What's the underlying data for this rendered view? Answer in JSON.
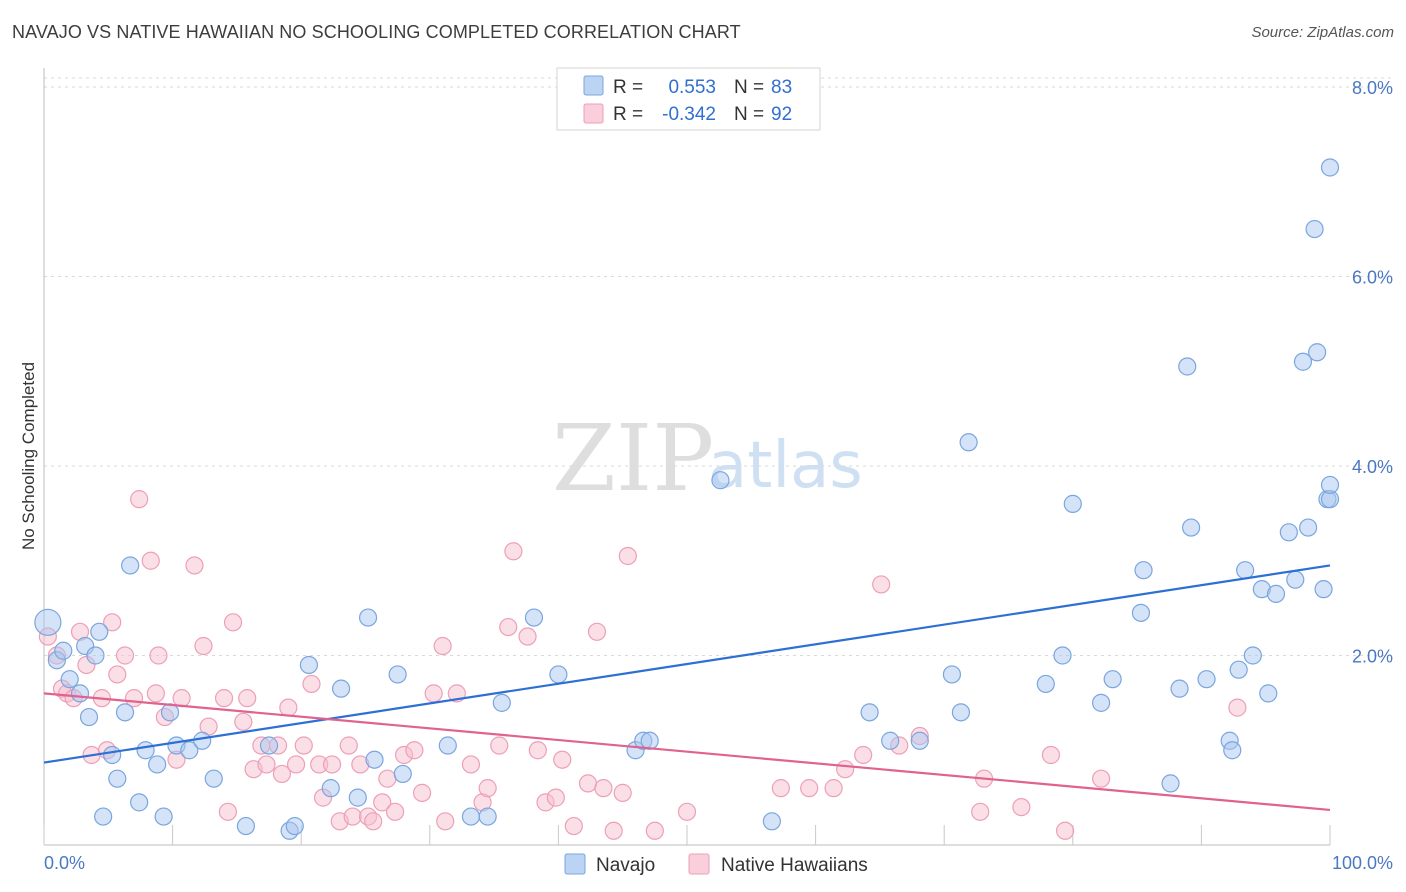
{
  "title": "NAVAJO VS NATIVE HAWAIIAN NO SCHOOLING COMPLETED CORRELATION CHART",
  "source": "Source: ZipAtlas.com",
  "watermark": {
    "zip": "ZIP",
    "atlas": "atlas"
  },
  "colors": {
    "navajo_fill": "#a9c8ef",
    "navajo_stroke": "#7aa6de",
    "navajo_line": "#2d6fd4",
    "hawaiian_fill": "#f6bfd0",
    "hawaiian_stroke": "#ee9fb8",
    "hawaiian_line": "#e0628f",
    "grid": "#d9d9d9",
    "tick_text": "#4a78c2"
  },
  "legend": {
    "rows": [
      {
        "r_label": "R =",
        "r_value": "0.553",
        "n_label": "N =",
        "n_value": "83"
      },
      {
        "r_label": "R =",
        "r_value": "-0.342",
        "n_label": "N =",
        "n_value": "92"
      }
    ]
  },
  "chart_data": {
    "type": "scatter",
    "title": "NAVAJO VS NATIVE HAWAIIAN NO SCHOOLING COMPLETED CORRELATION CHART",
    "xlabel": "",
    "ylabel": "No Schooling Completed",
    "xlim": [
      0,
      100
    ],
    "ylim": [
      0,
      8.2
    ],
    "x_tick_labels": [
      "0.0%",
      "100.0%"
    ],
    "y_ticks": [
      2,
      4,
      6,
      8
    ],
    "y_tick_labels": [
      "2.0%",
      "4.0%",
      "6.0%",
      "8.0%"
    ],
    "grid": true,
    "legend_position": "top-center",
    "series": [
      {
        "name": "Navajo",
        "r": 0.553,
        "n": 83,
        "trend": {
          "x0": 0,
          "y0": 0.87,
          "x1": 100,
          "y1": 2.95
        },
        "points": [
          [
            0.3,
            2.35
          ],
          [
            1.0,
            1.95
          ],
          [
            1.5,
            2.05
          ],
          [
            2.0,
            1.75
          ],
          [
            2.8,
            1.6
          ],
          [
            3.2,
            2.1
          ],
          [
            3.5,
            1.35
          ],
          [
            4.0,
            2.0
          ],
          [
            4.3,
            2.25
          ],
          [
            4.6,
            0.3
          ],
          [
            5.3,
            0.95
          ],
          [
            5.7,
            0.7
          ],
          [
            6.3,
            1.4
          ],
          [
            6.7,
            2.95
          ],
          [
            7.4,
            0.45
          ],
          [
            7.9,
            1.0
          ],
          [
            8.8,
            0.85
          ],
          [
            9.3,
            0.3
          ],
          [
            9.8,
            1.4
          ],
          [
            10.3,
            1.05
          ],
          [
            11.3,
            1.0
          ],
          [
            12.3,
            1.1
          ],
          [
            13.2,
            0.7
          ],
          [
            15.7,
            0.2
          ],
          [
            17.5,
            1.05
          ],
          [
            19.1,
            0.15
          ],
          [
            19.5,
            0.2
          ],
          [
            20.6,
            1.9
          ],
          [
            22.3,
            0.6
          ],
          [
            23.1,
            1.65
          ],
          [
            24.4,
            0.5
          ],
          [
            25.2,
            2.4
          ],
          [
            25.7,
            0.9
          ],
          [
            27.5,
            1.8
          ],
          [
            27.9,
            0.75
          ],
          [
            31.4,
            1.05
          ],
          [
            33.2,
            0.3
          ],
          [
            34.5,
            0.3
          ],
          [
            35.6,
            1.5
          ],
          [
            38.1,
            2.4
          ],
          [
            40.0,
            1.8
          ],
          [
            46.0,
            1.0
          ],
          [
            46.6,
            1.1
          ],
          [
            47.1,
            1.1
          ],
          [
            52.6,
            3.85
          ],
          [
            56.6,
            0.25
          ],
          [
            64.2,
            1.4
          ],
          [
            65.8,
            1.1
          ],
          [
            68.1,
            1.1
          ],
          [
            70.6,
            1.8
          ],
          [
            71.3,
            1.4
          ],
          [
            71.9,
            4.25
          ],
          [
            77.9,
            1.7
          ],
          [
            79.2,
            2.0
          ],
          [
            80.0,
            3.6
          ],
          [
            82.2,
            1.5
          ],
          [
            83.1,
            1.75
          ],
          [
            85.3,
            2.45
          ],
          [
            85.5,
            2.9
          ],
          [
            87.6,
            0.65
          ],
          [
            88.3,
            1.65
          ],
          [
            88.9,
            5.05
          ],
          [
            89.2,
            3.35
          ],
          [
            90.4,
            1.75
          ],
          [
            92.2,
            1.1
          ],
          [
            92.4,
            1.0
          ],
          [
            92.9,
            1.85
          ],
          [
            93.4,
            2.9
          ],
          [
            94.0,
            2.0
          ],
          [
            94.7,
            2.7
          ],
          [
            95.2,
            1.6
          ],
          [
            95.8,
            2.65
          ],
          [
            96.8,
            3.3
          ],
          [
            97.3,
            2.8
          ],
          [
            97.9,
            5.1
          ],
          [
            98.3,
            3.35
          ],
          [
            98.8,
            6.5
          ],
          [
            99.0,
            5.2
          ],
          [
            99.5,
            2.7
          ],
          [
            99.8,
            3.65
          ],
          [
            100.0,
            3.65
          ],
          [
            100.0,
            3.8
          ],
          [
            100.0,
            7.15
          ]
        ]
      },
      {
        "name": "Native Hawaiians",
        "r": -0.342,
        "n": 92,
        "trend": {
          "x0": 0,
          "y0": 1.6,
          "x1": 100,
          "y1": 0.37
        },
        "points": [
          [
            0.3,
            2.2
          ],
          [
            1.0,
            2.0
          ],
          [
            1.4,
            1.65
          ],
          [
            1.8,
            1.6
          ],
          [
            2.3,
            1.55
          ],
          [
            2.8,
            2.25
          ],
          [
            3.3,
            1.9
          ],
          [
            3.7,
            0.95
          ],
          [
            4.5,
            1.55
          ],
          [
            4.9,
            1.0
          ],
          [
            5.3,
            2.35
          ],
          [
            5.7,
            1.8
          ],
          [
            6.3,
            2.0
          ],
          [
            7.0,
            1.55
          ],
          [
            7.4,
            3.65
          ],
          [
            8.3,
            3.0
          ],
          [
            8.7,
            1.6
          ],
          [
            8.9,
            2.0
          ],
          [
            9.4,
            1.35
          ],
          [
            10.3,
            0.9
          ],
          [
            10.7,
            1.55
          ],
          [
            11.7,
            2.95
          ],
          [
            12.4,
            2.1
          ],
          [
            12.8,
            1.25
          ],
          [
            14.0,
            1.55
          ],
          [
            14.3,
            0.35
          ],
          [
            14.7,
            2.35
          ],
          [
            15.5,
            1.3
          ],
          [
            15.8,
            1.55
          ],
          [
            16.3,
            0.8
          ],
          [
            16.9,
            1.05
          ],
          [
            17.3,
            0.85
          ],
          [
            18.2,
            1.05
          ],
          [
            18.5,
            0.75
          ],
          [
            19.0,
            1.45
          ],
          [
            19.6,
            0.85
          ],
          [
            20.2,
            1.05
          ],
          [
            20.8,
            1.7
          ],
          [
            21.4,
            0.85
          ],
          [
            21.7,
            0.5
          ],
          [
            22.4,
            0.85
          ],
          [
            23.0,
            0.25
          ],
          [
            23.7,
            1.05
          ],
          [
            24.0,
            0.3
          ],
          [
            24.6,
            0.85
          ],
          [
            25.2,
            0.3
          ],
          [
            25.6,
            0.25
          ],
          [
            26.3,
            0.45
          ],
          [
            26.7,
            0.7
          ],
          [
            27.3,
            0.35
          ],
          [
            28.0,
            0.95
          ],
          [
            28.8,
            1.0
          ],
          [
            29.4,
            0.55
          ],
          [
            30.3,
            1.6
          ],
          [
            31.0,
            2.1
          ],
          [
            31.2,
            0.25
          ],
          [
            32.1,
            1.6
          ],
          [
            33.2,
            0.85
          ],
          [
            34.1,
            0.45
          ],
          [
            34.5,
            0.6
          ],
          [
            35.4,
            1.05
          ],
          [
            36.1,
            2.3
          ],
          [
            36.5,
            3.1
          ],
          [
            37.6,
            2.2
          ],
          [
            38.4,
            1.0
          ],
          [
            39.0,
            0.45
          ],
          [
            39.8,
            0.5
          ],
          [
            40.3,
            0.9
          ],
          [
            41.2,
            0.2
          ],
          [
            42.3,
            0.65
          ],
          [
            43.0,
            2.25
          ],
          [
            43.5,
            0.6
          ],
          [
            44.3,
            0.15
          ],
          [
            45.0,
            0.55
          ],
          [
            45.4,
            3.05
          ],
          [
            47.5,
            0.15
          ],
          [
            50.0,
            0.35
          ],
          [
            57.3,
            0.6
          ],
          [
            59.5,
            0.6
          ],
          [
            61.4,
            0.6
          ],
          [
            62.3,
            0.8
          ],
          [
            63.7,
            0.95
          ],
          [
            65.1,
            2.75
          ],
          [
            66.5,
            1.05
          ],
          [
            68.1,
            1.15
          ],
          [
            72.8,
            0.35
          ],
          [
            73.1,
            0.7
          ],
          [
            76.0,
            0.4
          ],
          [
            78.3,
            0.95
          ],
          [
            79.4,
            0.15
          ],
          [
            82.2,
            0.7
          ],
          [
            92.8,
            1.45
          ]
        ]
      }
    ]
  }
}
